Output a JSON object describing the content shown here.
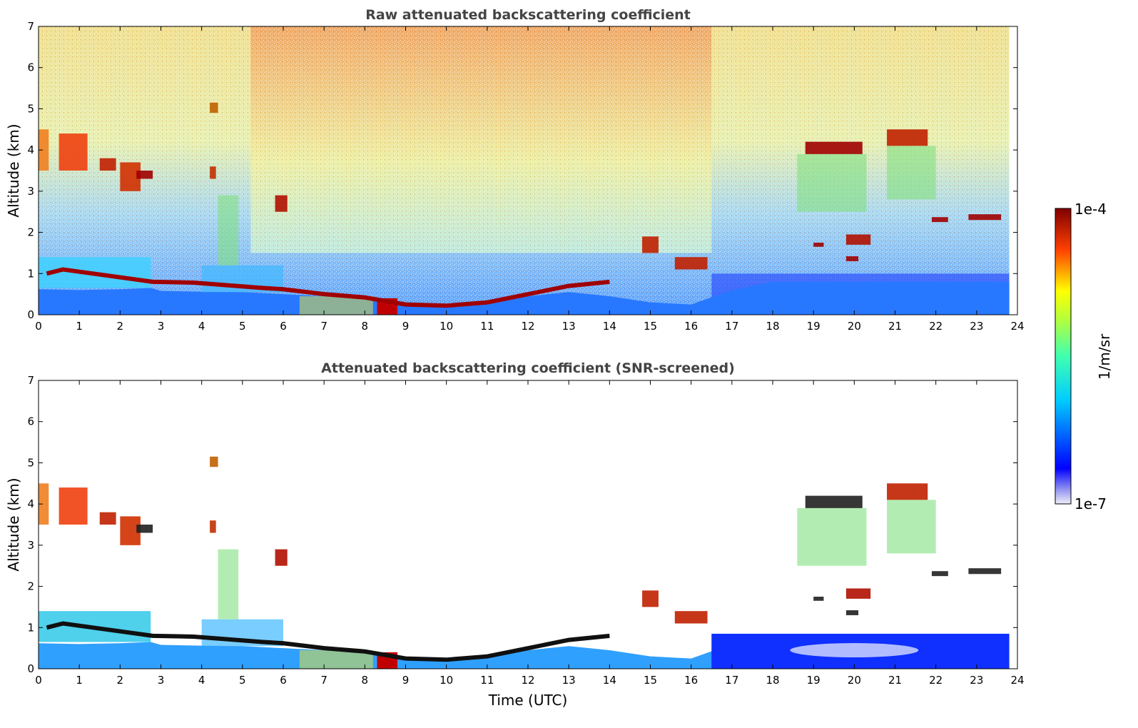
{
  "chart_data": [
    {
      "type": "heatmap",
      "title": "Raw attenuated backscattering coefficient",
      "ylabel": "Altitude (km)",
      "xlabel": "",
      "xlim": [
        0,
        24
      ],
      "ylim": [
        0,
        7
      ],
      "xticks": [
        "0",
        "1",
        "2",
        "3",
        "4",
        "5",
        "6",
        "7",
        "8",
        "9",
        "10",
        "11",
        "12",
        "13",
        "14",
        "15",
        "16",
        "17",
        "18",
        "19",
        "20",
        "21",
        "22",
        "23",
        "24"
      ],
      "yticks": [
        "0",
        "1",
        "2",
        "3",
        "4",
        "5",
        "6",
        "7"
      ],
      "data_end_hour": 23.8
    },
    {
      "type": "heatmap",
      "title": "Attenuated backscattering coefficient (SNR-screened)",
      "ylabel": "Altitude (km)",
      "xlabel": "Time (UTC)",
      "xlim": [
        0,
        24
      ],
      "ylim": [
        0,
        7
      ],
      "xticks": [
        "0",
        "1",
        "2",
        "3",
        "4",
        "5",
        "6",
        "7",
        "8",
        "9",
        "10",
        "11",
        "12",
        "13",
        "14",
        "15",
        "16",
        "17",
        "18",
        "19",
        "20",
        "21",
        "22",
        "23",
        "24"
      ],
      "yticks": [
        "0",
        "1",
        "2",
        "3",
        "4",
        "5",
        "6",
        "7"
      ],
      "data_end_hour": 23.8
    }
  ],
  "colorbar": {
    "label": "1/m/sr",
    "max_label": "1e-4",
    "min_label": "1e-7",
    "scale": "log",
    "colormap": "jet",
    "colors": [
      "#e8e8f8",
      "#0000ff",
      "#00ffff",
      "#ffff00",
      "#ff0000",
      "#800000"
    ]
  }
}
